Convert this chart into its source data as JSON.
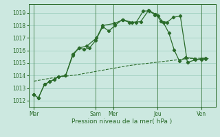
{
  "background_color": "#cce8e0",
  "grid_color": "#99ccbb",
  "line_color": "#2a6b2a",
  "xlabel": "Pression niveau de la mer( hPa )",
  "ylim": [
    1011.5,
    1019.7
  ],
  "yticks": [
    1012,
    1013,
    1014,
    1015,
    1016,
    1017,
    1018,
    1019
  ],
  "xtick_labels": [
    "Mar",
    "Sam",
    "Mer",
    "Jeu",
    "Ven"
  ],
  "xtick_positions": [
    0,
    3.5,
    4.5,
    7.0,
    9.5
  ],
  "vline_positions": [
    0,
    3.5,
    4.5,
    7.0,
    9.5
  ],
  "series1_x": [
    0,
    0.25,
    0.6,
    0.9,
    1.15,
    1.4,
    1.8,
    2.2,
    2.55,
    2.85,
    3.15,
    3.5,
    3.9,
    4.25,
    4.6,
    5.0,
    5.4,
    5.8,
    6.2,
    6.55,
    6.85,
    7.05,
    7.35,
    7.65,
    7.95,
    8.25,
    8.6,
    9.1,
    9.5,
    9.75
  ],
  "series1_y": [
    1012.5,
    1012.2,
    1013.3,
    1013.5,
    1013.7,
    1013.9,
    1014.0,
    1015.6,
    1016.2,
    1016.1,
    1016.2,
    1016.8,
    1017.9,
    1017.55,
    1018.0,
    1018.45,
    1018.25,
    1018.25,
    1019.15,
    1019.15,
    1018.85,
    1018.75,
    1018.2,
    1017.4,
    1016.05,
    1015.15,
    1015.45,
    1015.35,
    1015.25,
    1015.35
  ],
  "series2_x": [
    0,
    0.25,
    0.6,
    0.9,
    1.15,
    1.4,
    1.8,
    2.2,
    2.55,
    3.0,
    3.55,
    3.9,
    4.55,
    5.05,
    5.55,
    6.05,
    6.5,
    6.9,
    7.2,
    7.55,
    7.9,
    8.3,
    8.7,
    9.15,
    9.5,
    9.75
  ],
  "series2_y": [
    1012.5,
    1012.2,
    1013.3,
    1013.5,
    1013.7,
    1013.9,
    1014.0,
    1015.7,
    1016.2,
    1016.35,
    1017.0,
    1018.0,
    1018.15,
    1018.45,
    1018.25,
    1018.3,
    1019.2,
    1018.9,
    1018.35,
    1018.25,
    1018.65,
    1018.75,
    1015.05,
    1015.25,
    1015.35,
    1015.4
  ],
  "series3_x": [
    0,
    0.6,
    1.2,
    1.8,
    2.4,
    3.0,
    3.6,
    4.2,
    4.8,
    5.4,
    6.0,
    6.6,
    7.2,
    7.8,
    8.4,
    9.0,
    9.6,
    9.9
  ],
  "series3_y": [
    1013.55,
    1013.7,
    1013.85,
    1013.95,
    1014.05,
    1014.2,
    1014.35,
    1014.5,
    1014.65,
    1014.8,
    1014.9,
    1015.0,
    1015.1,
    1015.2,
    1015.3,
    1015.38,
    1015.38,
    1015.35
  ]
}
